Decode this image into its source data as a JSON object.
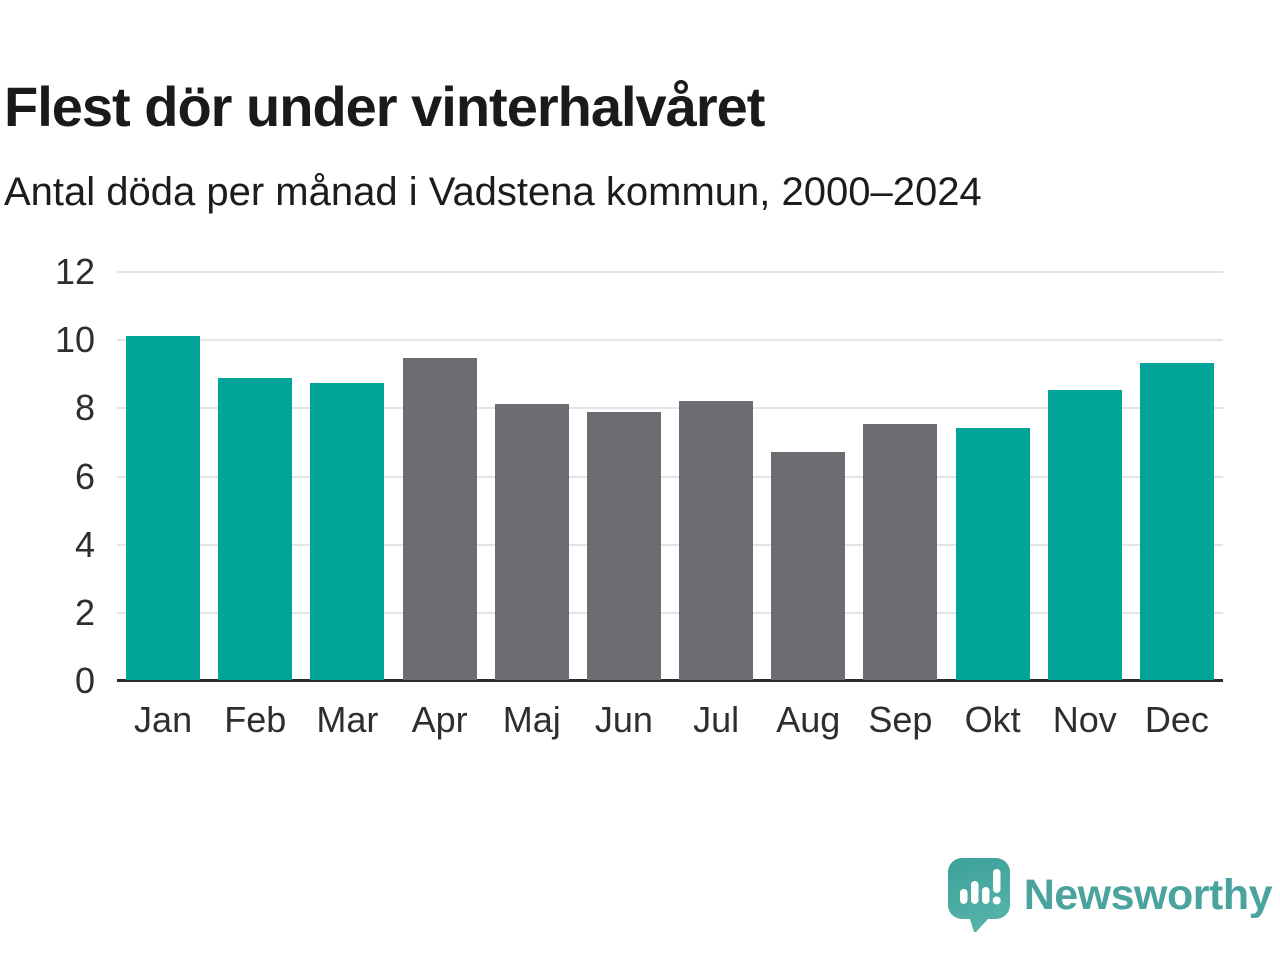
{
  "header": {
    "title": "Flest dör under vinterhalvåret",
    "subtitle": "Antal döda per månad i Vadstena kommun, 2000–2024"
  },
  "chart_data": {
    "type": "bar",
    "title": "Flest dör under vinterhalvåret",
    "subtitle": "Antal döda per månad i Vadstena kommun, 2000–2024",
    "categories": [
      "Jan",
      "Feb",
      "Mar",
      "Apr",
      "Maj",
      "Jun",
      "Jul",
      "Aug",
      "Sep",
      "Okt",
      "Nov",
      "Dec"
    ],
    "values": [
      10.1,
      8.85,
      8.7,
      9.45,
      8.1,
      7.85,
      8.2,
      6.7,
      7.5,
      7.4,
      8.5,
      9.3
    ],
    "bar_color_roles": [
      "winter",
      "winter",
      "winter",
      "summer",
      "summer",
      "summer",
      "summer",
      "summer",
      "summer",
      "winter",
      "winter",
      "winter"
    ],
    "colors": {
      "winter": "#00a498",
      "summer": "#6c6c72",
      "gridline": "#e4e4e4",
      "axis": "#2b2b2b",
      "text": "#2e2e2e"
    },
    "xlabel": "",
    "ylabel": "",
    "ylim": [
      0,
      12
    ],
    "yticks": [
      0,
      2,
      4,
      6,
      8,
      10,
      12
    ],
    "grid": true,
    "legend": "none"
  },
  "footer": {
    "brand": "Newsworthy",
    "brand_color": "#4aa39d",
    "icon": "newsworthy-logo-icon",
    "icon_gradient_top": "#3da199",
    "icon_gradient_bottom": "#54b2a9"
  }
}
